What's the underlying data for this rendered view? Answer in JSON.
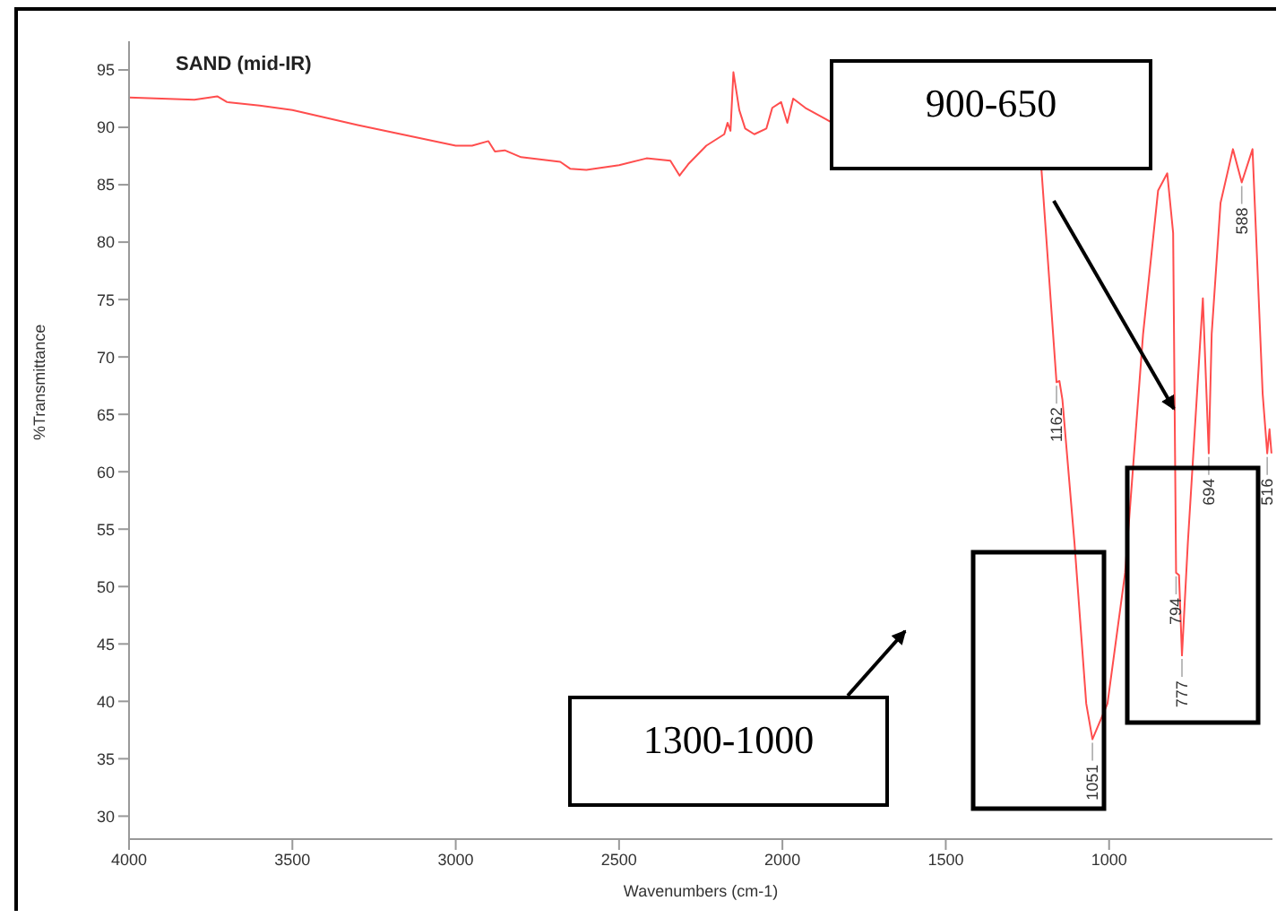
{
  "chart_data": {
    "type": "line",
    "title": "SAND (mid-IR)",
    "xlabel": "Wavenumbers (cm-1)",
    "ylabel": "%Transmittance",
    "x": [
      4000,
      3800,
      3730,
      3700,
      3600,
      3500,
      3300,
      3000,
      2950,
      2900,
      2880,
      2850,
      2800,
      2680,
      2650,
      2600,
      2500,
      2416,
      2343,
      2315,
      2288,
      2233,
      2178,
      2168,
      2159,
      2150,
      2132,
      2114,
      2086,
      2049,
      2031,
      2004,
      1985,
      1967,
      1930,
      1866,
      1848,
      1500,
      1207,
      1161,
      1152,
      1143,
      1106,
      1070,
      1051,
      1005,
      951,
      896,
      850,
      822,
      804,
      795,
      786,
      777,
      759,
      713,
      695,
      686,
      659,
      621,
      594,
      561,
      530,
      516,
      509,
      503
    ],
    "series": [
      {
        "color": "#ff4d4d",
        "values": [
          92.6,
          92.4,
          92.7,
          92.2,
          91.9,
          91.5,
          90.2,
          88.4,
          88.4,
          88.8,
          87.9,
          88.0,
          87.4,
          87.0,
          86.4,
          86.3,
          86.7,
          87.3,
          87.1,
          85.8,
          86.8,
          88.4,
          89.4,
          90.4,
          89.7,
          94.8,
          91.5,
          89.9,
          89.4,
          89.9,
          91.7,
          92.2,
          90.4,
          92.5,
          91.7,
          90.7,
          90.4,
          null,
          86.3,
          67.8,
          67.9,
          66.3,
          53.8,
          39.8,
          36.7,
          39.8,
          51.2,
          72.0,
          84.5,
          86.0,
          80.8,
          51.2,
          51.0,
          44.0,
          53.8,
          75.1,
          61.6,
          72.0,
          83.4,
          88.1,
          85.2,
          88.1,
          66.8,
          61.6,
          63.7,
          61.6
        ]
      }
    ],
    "annotations": [
      {
        "text": "1162",
        "x": 1161,
        "y": 67.8
      },
      {
        "text": "1051",
        "x": 1051,
        "y": 36.7
      },
      {
        "text": "794",
        "x": 795,
        "y": 51.2
      },
      {
        "text": "777",
        "x": 777,
        "y": 44.0
      },
      {
        "text": "694",
        "x": 695,
        "y": 61.6
      },
      {
        "text": "588",
        "x": 594,
        "y": 85.2
      },
      {
        "text": "516",
        "x": 516,
        "y": 61.6
      },
      "900-650",
      "1300-1000"
    ],
    "xlim": [
      4000,
      500
    ],
    "xticks": [
      4000,
      3500,
      3000,
      2500,
      2000,
      1500,
      1000
    ],
    "ylim": [
      28,
      97.5
    ],
    "yticks": [
      30,
      35,
      40,
      45,
      50,
      55,
      60,
      65,
      70,
      75,
      80,
      85,
      90,
      95
    ],
    "grid": false,
    "legend": false,
    "marker": "none",
    "line_style": "solid"
  }
}
